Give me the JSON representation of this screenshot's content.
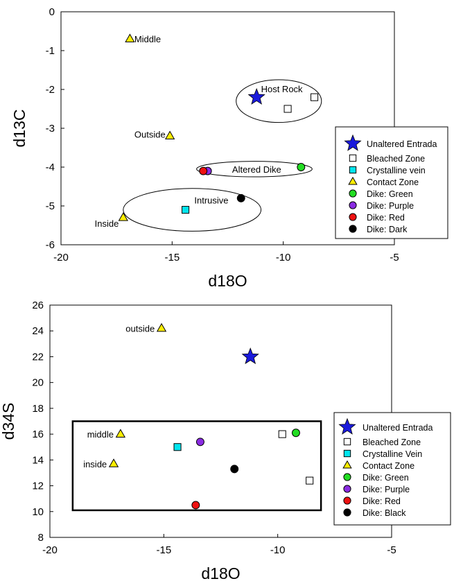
{
  "chart_data": [
    {
      "type": "scatter",
      "xlabel": "d18O",
      "ylabel": "d13C",
      "xlim": [
        -20,
        -5
      ],
      "ylim": [
        -6,
        0
      ],
      "xticks": [
        -20,
        -15,
        -10,
        -5
      ],
      "yticks": [
        0,
        -1,
        -2,
        -3,
        -4,
        -5,
        -6
      ],
      "grid": false,
      "legend_position": "right",
      "legend": [
        {
          "label": "Unaltered Entrada",
          "marker": "star",
          "color": "#1a1adc"
        },
        {
          "label": "Bleached Zone",
          "marker": "square",
          "color": "#ffffff"
        },
        {
          "label": "Crystalline vein",
          "marker": "square",
          "color": "#00e5ee"
        },
        {
          "label": "Contact Zone",
          "marker": "triangle",
          "color": "#ffee00"
        },
        {
          "label": "Dike: Green",
          "marker": "circle",
          "color": "#22dd22"
        },
        {
          "label": "Dike: Purple",
          "marker": "circle",
          "color": "#8a2be2"
        },
        {
          "label": "Dike: Red",
          "marker": "circle",
          "color": "#ee1111"
        },
        {
          "label": "Dike: Dark",
          "marker": "circle",
          "color": "#000000"
        }
      ],
      "series": [
        {
          "name": "Unaltered Entrada",
          "marker": "star",
          "color": "#1a1adc",
          "points": [
            {
              "x": -11.2,
              "y": -2.2
            }
          ]
        },
        {
          "name": "Bleached Zone",
          "marker": "square",
          "color": "#ffffff",
          "points": [
            {
              "x": -9.8,
              "y": -2.5
            },
            {
              "x": -8.6,
              "y": -2.2
            }
          ]
        },
        {
          "name": "Crystalline vein",
          "marker": "square",
          "color": "#00e5ee",
          "points": [
            {
              "x": -14.4,
              "y": -5.1
            }
          ]
        },
        {
          "name": "Contact Zone",
          "marker": "triangle",
          "color": "#ffee00",
          "points": [
            {
              "x": -16.9,
              "y": -0.7
            },
            {
              "x": -15.1,
              "y": -3.2
            },
            {
              "x": -17.2,
              "y": -5.3
            }
          ]
        },
        {
          "name": "Dike: Green",
          "marker": "circle",
          "color": "#22dd22",
          "points": [
            {
              "x": -9.2,
              "y": -4.0
            }
          ]
        },
        {
          "name": "Dike: Purple",
          "marker": "circle",
          "color": "#8a2be2",
          "points": [
            {
              "x": -13.4,
              "y": -4.1
            }
          ]
        },
        {
          "name": "Dike: Red",
          "marker": "circle",
          "color": "#ee1111",
          "points": [
            {
              "x": -13.6,
              "y": -4.1
            }
          ]
        },
        {
          "name": "Dike: Dark",
          "marker": "circle",
          "color": "#000000",
          "points": [
            {
              "x": -11.9,
              "y": -4.8
            }
          ]
        }
      ],
      "annotations": [
        {
          "text": "Middle",
          "x": -16.7,
          "y": -0.7
        },
        {
          "text": "Outside",
          "x": -15.3,
          "y": -3.15
        },
        {
          "text": "Inside",
          "x": -17.4,
          "y": -5.45
        },
        {
          "text": "Host Rock",
          "x": -11.0,
          "y": -1.98
        },
        {
          "text": "Altered Dike",
          "x": -12.3,
          "y": -4.05
        },
        {
          "text": "Intrusive",
          "x": -14.0,
          "y": -4.85
        }
      ],
      "ellipses": [
        {
          "label": "Host Rock",
          "cx": -10.2,
          "cy": -2.3,
          "rx": 1.92,
          "ry": 0.55
        },
        {
          "label": "Altered Dike",
          "cx": -11.3,
          "cy": -4.05,
          "rx": 2.6,
          "ry": 0.2
        },
        {
          "label": "Intrusive",
          "cx": -14.1,
          "cy": -5.1,
          "rx": 3.1,
          "ry": 0.55
        }
      ]
    },
    {
      "type": "scatter",
      "xlabel": "d18O",
      "ylabel": "d34S",
      "xlim": [
        -20,
        -5
      ],
      "ylim": [
        8,
        26
      ],
      "xticks": [
        -20,
        -15,
        -10,
        -5
      ],
      "yticks": [
        8,
        10,
        12,
        14,
        16,
        18,
        20,
        22,
        24,
        26
      ],
      "grid": false,
      "legend_position": "right",
      "legend": [
        {
          "label": "Unaltered Entrada",
          "marker": "star",
          "color": "#1a1adc"
        },
        {
          "label": "Bleached Zone",
          "marker": "square",
          "color": "#ffffff"
        },
        {
          "label": "Crystalline Vein",
          "marker": "square",
          "color": "#00e5ee"
        },
        {
          "label": "Contact Zone",
          "marker": "triangle",
          "color": "#ffee00"
        },
        {
          "label": "Dike: Green",
          "marker": "circle",
          "color": "#22dd22"
        },
        {
          "label": "Dike: Purple",
          "marker": "circle",
          "color": "#8a2be2"
        },
        {
          "label": "Dike: Red",
          "marker": "circle",
          "color": "#ee1111"
        },
        {
          "label": "Dike: Black",
          "marker": "circle",
          "color": "#000000"
        }
      ],
      "series": [
        {
          "name": "Unaltered Entrada",
          "marker": "star",
          "color": "#1a1adc",
          "points": [
            {
              "x": -11.2,
              "y": 22.0
            }
          ]
        },
        {
          "name": "Bleached Zone",
          "marker": "square",
          "color": "#ffffff",
          "points": [
            {
              "x": -9.8,
              "y": 16.0
            },
            {
              "x": -8.6,
              "y": 12.4
            }
          ]
        },
        {
          "name": "Crystalline Vein",
          "marker": "square",
          "color": "#00e5ee",
          "points": [
            {
              "x": -14.4,
              "y": 15.0
            }
          ]
        },
        {
          "name": "Contact Zone",
          "marker": "triangle",
          "color": "#ffee00",
          "points": [
            {
              "x": -15.1,
              "y": 24.2
            },
            {
              "x": -16.9,
              "y": 16.0
            },
            {
              "x": -17.2,
              "y": 13.7
            }
          ]
        },
        {
          "name": "Dike: Green",
          "marker": "circle",
          "color": "#22dd22",
          "points": [
            {
              "x": -9.2,
              "y": 16.1
            }
          ]
        },
        {
          "name": "Dike: Purple",
          "marker": "circle",
          "color": "#8a2be2",
          "points": [
            {
              "x": -13.4,
              "y": 15.4
            }
          ]
        },
        {
          "name": "Dike: Red",
          "marker": "circle",
          "color": "#ee1111",
          "points": [
            {
              "x": -13.6,
              "y": 10.5
            }
          ]
        },
        {
          "name": "Dike: Black",
          "marker": "circle",
          "color": "#000000",
          "points": [
            {
              "x": -11.9,
              "y": 13.3
            }
          ]
        }
      ],
      "annotations": [
        {
          "text": "outside",
          "x": -15.4,
          "y": 24.2
        },
        {
          "text": "middle",
          "x": -17.2,
          "y": 16.0
        },
        {
          "text": "inside",
          "x": -17.5,
          "y": 13.7
        }
      ],
      "rectangles": [
        {
          "x0": -19.0,
          "x1": -8.1,
          "y0": 10.1,
          "y1": 17.0
        }
      ]
    }
  ]
}
